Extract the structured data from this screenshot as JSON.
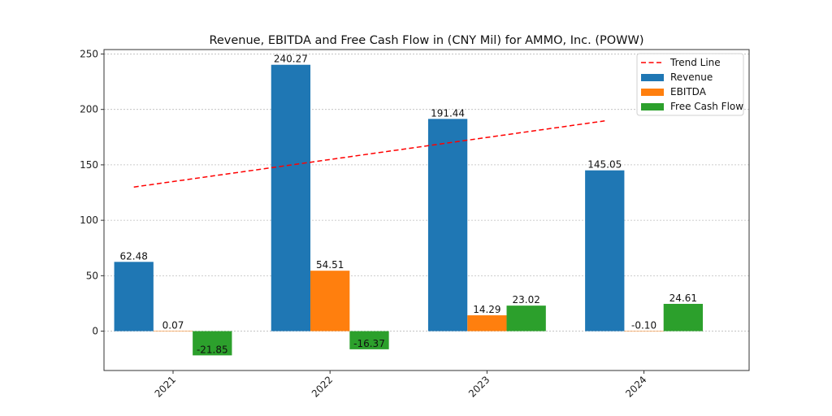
{
  "chart_data": {
    "type": "bar",
    "title": "Revenue, EBITDA and Free Cash Flow in (CNY Mil) for AMMO, Inc. (POWW)",
    "xlabel": "",
    "ylabel": "",
    "categories": [
      "2021",
      "2022",
      "2023",
      "2024"
    ],
    "series": [
      {
        "name": "Revenue",
        "color": "#1f77b4",
        "values": [
          62.48,
          240.27,
          191.44,
          145.05
        ],
        "labels": [
          "62.48",
          "240.27",
          "191.44",
          "145.05"
        ]
      },
      {
        "name": "EBITDA",
        "color": "#ff7f0e",
        "values": [
          0.07,
          54.51,
          14.29,
          -0.1
        ],
        "labels": [
          "0.07",
          "54.51",
          "14.29",
          "-0.10"
        ]
      },
      {
        "name": "Free Cash Flow",
        "color": "#2ca02c",
        "values": [
          -21.85,
          -16.37,
          23.02,
          24.61
        ],
        "labels": [
          "-21.85",
          "-16.37",
          "23.02",
          "24.61"
        ]
      }
    ],
    "trend_line": {
      "name": "Trend Line",
      "color": "#ff0000",
      "style": "dashed",
      "values": [
        129.98,
        149.87,
        169.76,
        189.65
      ]
    },
    "yticks": [
      0,
      50,
      100,
      150,
      200,
      250
    ],
    "ylim": [
      -35.5,
      254
    ],
    "xlim": [
      -0.44,
      3.67
    ],
    "grid": "y-dotted",
    "legend_position": "top-right",
    "legend_order": [
      "Trend Line",
      "Revenue",
      "EBITDA",
      "Free Cash Flow"
    ],
    "xtick_rotation_deg": 45
  }
}
